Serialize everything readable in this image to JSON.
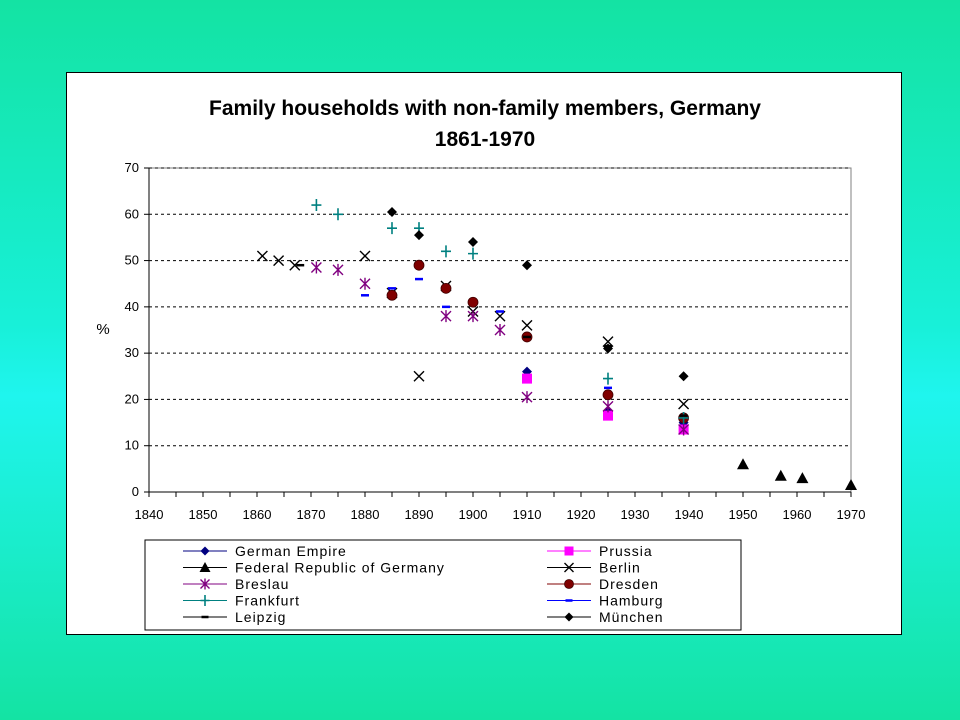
{
  "chart_data": {
    "type": "scatter",
    "title": "Family households with non-family members, Germany",
    "subtitle": "1861-1970",
    "ylabel": "%",
    "xlim": [
      1840,
      1970
    ],
    "ylim": [
      0,
      70
    ],
    "x_ticks": [
      "1840",
      "1850",
      "1860",
      "1870",
      "1880",
      "1890",
      "1900",
      "1910",
      "1920",
      "1930",
      "1940",
      "1950",
      "1960",
      "1970"
    ],
    "y_ticks": [
      "0",
      "10",
      "20",
      "30",
      "40",
      "50",
      "60",
      "70"
    ],
    "grid": "horizontal dashed",
    "legend_position": "bottom",
    "series": [
      {
        "name": "German Empire",
        "color": "#000080",
        "marker": "diamond",
        "points": [
          [
            1910,
            26
          ],
          [
            1925,
            17.5
          ],
          [
            1939,
            15
          ]
        ]
      },
      {
        "name": "Prussia",
        "color": "#ff00ff",
        "marker": "square",
        "points": [
          [
            1910,
            24.5
          ],
          [
            1925,
            16.5
          ],
          [
            1939,
            13.5
          ]
        ]
      },
      {
        "name": "Federal Republic of Germany",
        "color": "#000000",
        "marker": "triangle",
        "points": [
          [
            1950,
            6
          ],
          [
            1957,
            3.5
          ],
          [
            1961,
            3
          ],
          [
            1970,
            1.5
          ]
        ]
      },
      {
        "name": "Berlin",
        "color": "#000000",
        "marker": "x",
        "points": [
          [
            1861,
            51
          ],
          [
            1864,
            50
          ],
          [
            1867,
            49
          ],
          [
            1880,
            51
          ],
          [
            1885,
            43
          ],
          [
            1890,
            25
          ],
          [
            1895,
            44.5
          ],
          [
            1900,
            39
          ],
          [
            1905,
            38
          ],
          [
            1910,
            36
          ],
          [
            1925,
            32.5
          ],
          [
            1939,
            19
          ]
        ]
      },
      {
        "name": "Breslau",
        "color": "#800080",
        "marker": "star",
        "points": [
          [
            1871,
            48.5
          ],
          [
            1875,
            48
          ],
          [
            1880,
            45
          ],
          [
            1895,
            38
          ],
          [
            1900,
            38
          ],
          [
            1905,
            35
          ],
          [
            1910,
            20.5
          ],
          [
            1925,
            18.5
          ],
          [
            1939,
            13.5
          ]
        ]
      },
      {
        "name": "Dresden",
        "color": "#800000",
        "marker": "circle",
        "points": [
          [
            1885,
            42.5
          ],
          [
            1890,
            49
          ],
          [
            1895,
            44
          ],
          [
            1900,
            41
          ],
          [
            1910,
            33.5
          ],
          [
            1925,
            21
          ],
          [
            1939,
            16
          ]
        ]
      },
      {
        "name": "Frankfurt",
        "color": "#008080",
        "marker": "plus",
        "points": [
          [
            1871,
            62
          ],
          [
            1875,
            60
          ],
          [
            1885,
            57
          ],
          [
            1890,
            57
          ],
          [
            1895,
            52
          ],
          [
            1900,
            51.5
          ],
          [
            1925,
            24.5
          ],
          [
            1939,
            16
          ]
        ]
      },
      {
        "name": "Hamburg",
        "color": "#0000ff",
        "marker": "dash",
        "points": [
          [
            1880,
            42.5
          ],
          [
            1885,
            44
          ],
          [
            1890,
            46
          ],
          [
            1895,
            40
          ],
          [
            1905,
            39
          ],
          [
            1925,
            22.5
          ]
        ]
      },
      {
        "name": "Leipzig",
        "color": "#000000",
        "marker": "dash",
        "points": [
          [
            1868,
            49
          ],
          [
            1910,
            33.5
          ],
          [
            1925,
            31.5
          ],
          [
            1939,
            16.5
          ]
        ]
      },
      {
        "name": "München",
        "color": "#000000",
        "marker": "diamond",
        "points": [
          [
            1885,
            60.5
          ],
          [
            1890,
            55.5
          ],
          [
            1900,
            54
          ],
          [
            1910,
            49
          ],
          [
            1925,
            31
          ],
          [
            1939,
            25
          ]
        ]
      }
    ]
  }
}
